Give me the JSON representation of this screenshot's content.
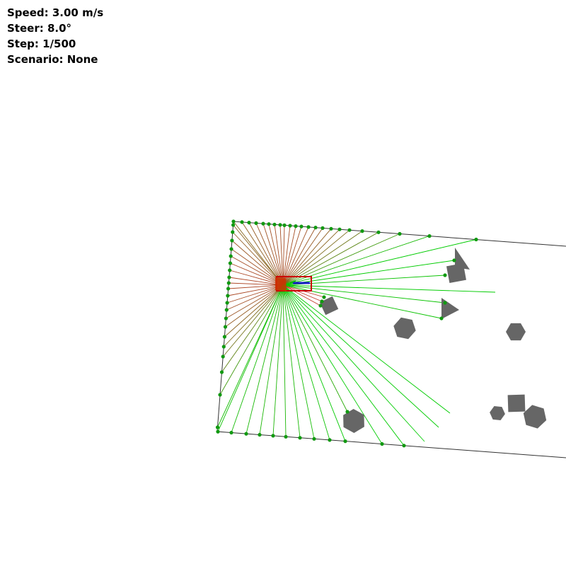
{
  "hud": {
    "speed_label": "Speed:",
    "speed_value": "3.00 m/s",
    "steer_label": "Steer:",
    "steer_value": "8.0°",
    "step_label": "Step:",
    "step_value": "1/500",
    "scenario_label": "Scenario:",
    "scenario_value": "None"
  },
  "simulation": {
    "speed_mps": 3.0,
    "steer_deg": 8.0,
    "step": 1,
    "max_steps": 500,
    "scenario": "None"
  },
  "colors": {
    "background": "#ffffff",
    "boundary": "#333333",
    "obstacle": "#666666",
    "ray_near": "#c0392b",
    "ray_far": "#00cc00",
    "hit_point": "#119911",
    "vehicle_outline": "#cc0000",
    "heading_arrow": "#1a1acc"
  },
  "icons": {
    "vehicle": "car-icon",
    "obstacle": "obstacle-icon",
    "ray": "lidar-ray",
    "hit": "hit-point-icon"
  }
}
